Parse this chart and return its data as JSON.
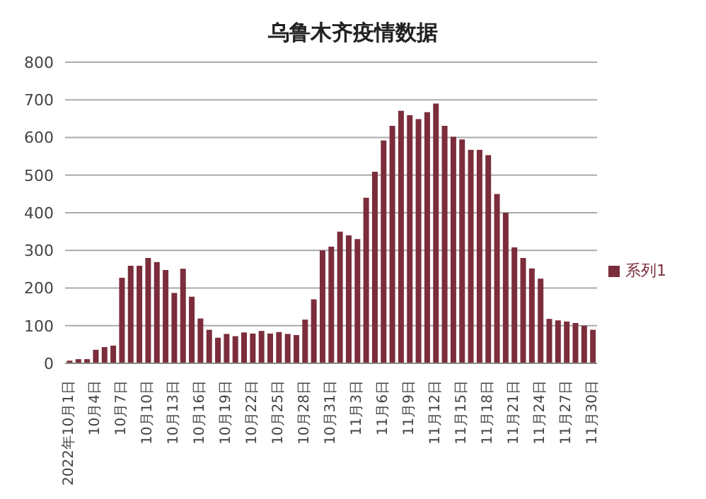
{
  "chart_data": {
    "type": "bar",
    "title": "乌鲁木齐疫情数据",
    "categories": [
      "2022年10月1日",
      null,
      null,
      "10月4日",
      null,
      null,
      "10月7日",
      null,
      null,
      "10月10日",
      null,
      null,
      "10月13日",
      null,
      null,
      "10月16日",
      null,
      null,
      "10月19日",
      null,
      null,
      "10月22日",
      null,
      null,
      "10月25日",
      null,
      null,
      "10月28日",
      null,
      null,
      "10月31日",
      null,
      null,
      "11月3日",
      null,
      null,
      "11月6日",
      null,
      null,
      "11月9日",
      null,
      null,
      "11月12日",
      null,
      null,
      "11月15日",
      null,
      null,
      "11月18日",
      null,
      null,
      "11月21日",
      null,
      null,
      "11月24日",
      null,
      null,
      "11月27日",
      null,
      null,
      "11月30日"
    ],
    "series": [
      {
        "name": "系列1",
        "color": "#7b2d3b",
        "values": [
          7,
          11,
          11,
          36,
          43,
          47,
          227,
          259,
          259,
          280,
          269,
          248,
          187,
          251,
          177,
          119,
          89,
          68,
          78,
          72,
          82,
          79,
          86,
          79,
          83,
          78,
          75,
          116,
          170,
          300,
          310,
          350,
          340,
          330,
          440,
          509,
          592,
          631,
          671,
          659,
          649,
          667,
          690,
          631,
          602,
          595,
          567,
          567,
          553,
          450,
          400,
          308,
          280,
          252,
          225,
          118,
          114,
          111,
          107,
          100,
          89
        ]
      }
    ],
    "ylim": [
      0,
      800
    ],
    "yticks": [
      0,
      100,
      200,
      300,
      400,
      500,
      600,
      700,
      800
    ],
    "grid": "y",
    "legend": "right"
  }
}
